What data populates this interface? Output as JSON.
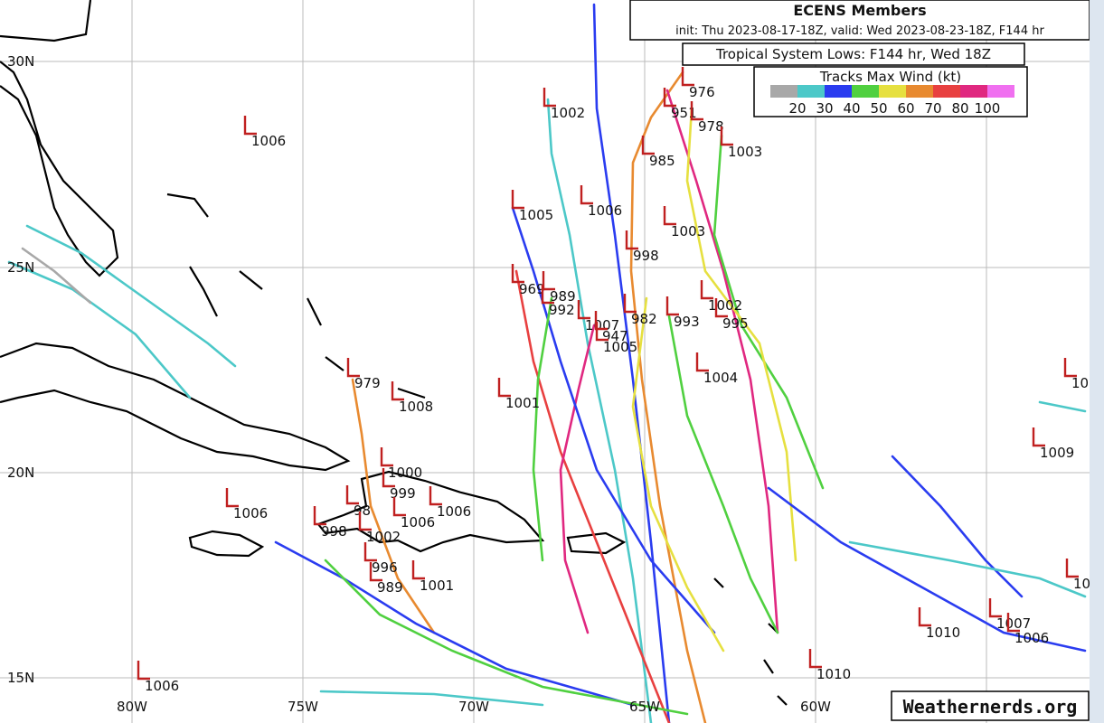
{
  "header": {
    "title": "ECENS Members",
    "subtitle": "init: Thu 2023-08-17-18Z, valid: Wed 2023-08-23-18Z, F144 hr"
  },
  "info": "Tropical System Lows: F144 hr, Wed 18Z",
  "legend": {
    "title": "Tracks Max Wind (kt)",
    "colors": [
      "#a8a8a8",
      "#4cc8c8",
      "#2a3cf0",
      "#50d040",
      "#e6e040",
      "#e88a30",
      "#e84040",
      "#e02880",
      "#f070f0"
    ],
    "labels": [
      "20",
      "30",
      "40",
      "50",
      "60",
      "70",
      "80",
      "100"
    ]
  },
  "latitudes": [
    "30N",
    "25N",
    "20N",
    "15N"
  ],
  "longitudes": [
    "80W",
    "75W",
    "70W",
    "65W",
    "60W"
  ],
  "lows": [
    "1006",
    "1002",
    "976",
    "951",
    "978",
    "1003",
    "985",
    "1005",
    "1006",
    "1003",
    "998",
    "969",
    "989",
    "992",
    "1007",
    "947",
    "1005",
    "982",
    "993",
    "1002",
    "995",
    "979",
    "1008",
    "1001",
    "1004",
    "10",
    "1009",
    "1000",
    "999",
    "1006",
    "1006",
    "1006",
    "98",
    "998",
    "1002",
    "996",
    "1001",
    "989",
    "1010",
    "1007",
    "1006",
    "1010",
    "1006",
    "10"
  ],
  "watermark": "Weathernerds.org"
}
